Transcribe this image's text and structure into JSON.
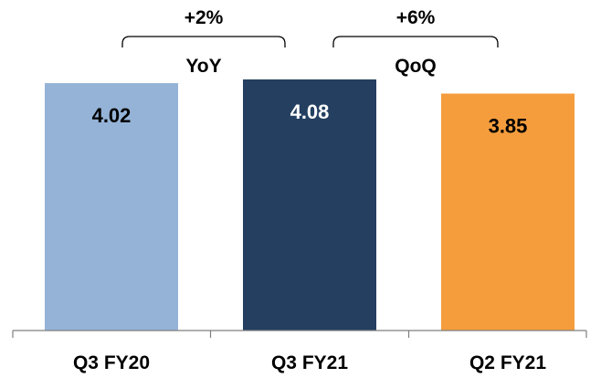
{
  "chart_data": {
    "type": "bar",
    "categories": [
      "Q3 FY20",
      "Q3 FY21",
      "Q2 FY21"
    ],
    "values": [
      4.02,
      4.08,
      3.85
    ],
    "colors": [
      "#95b3d7",
      "#243f60",
      "#f59d3d"
    ],
    "label_colors": [
      "#000000",
      "#ffffff",
      "#000000"
    ],
    "ylim": [
      0,
      4.08
    ],
    "grid": false,
    "annotations": [
      {
        "from": "Q3 FY20",
        "to": "Q3 FY21",
        "change": "+2%",
        "label": "YoY"
      },
      {
        "from": "Q3 FY21",
        "to": "Q2 FY21",
        "change": "+6%",
        "label": "QoQ"
      }
    ]
  }
}
